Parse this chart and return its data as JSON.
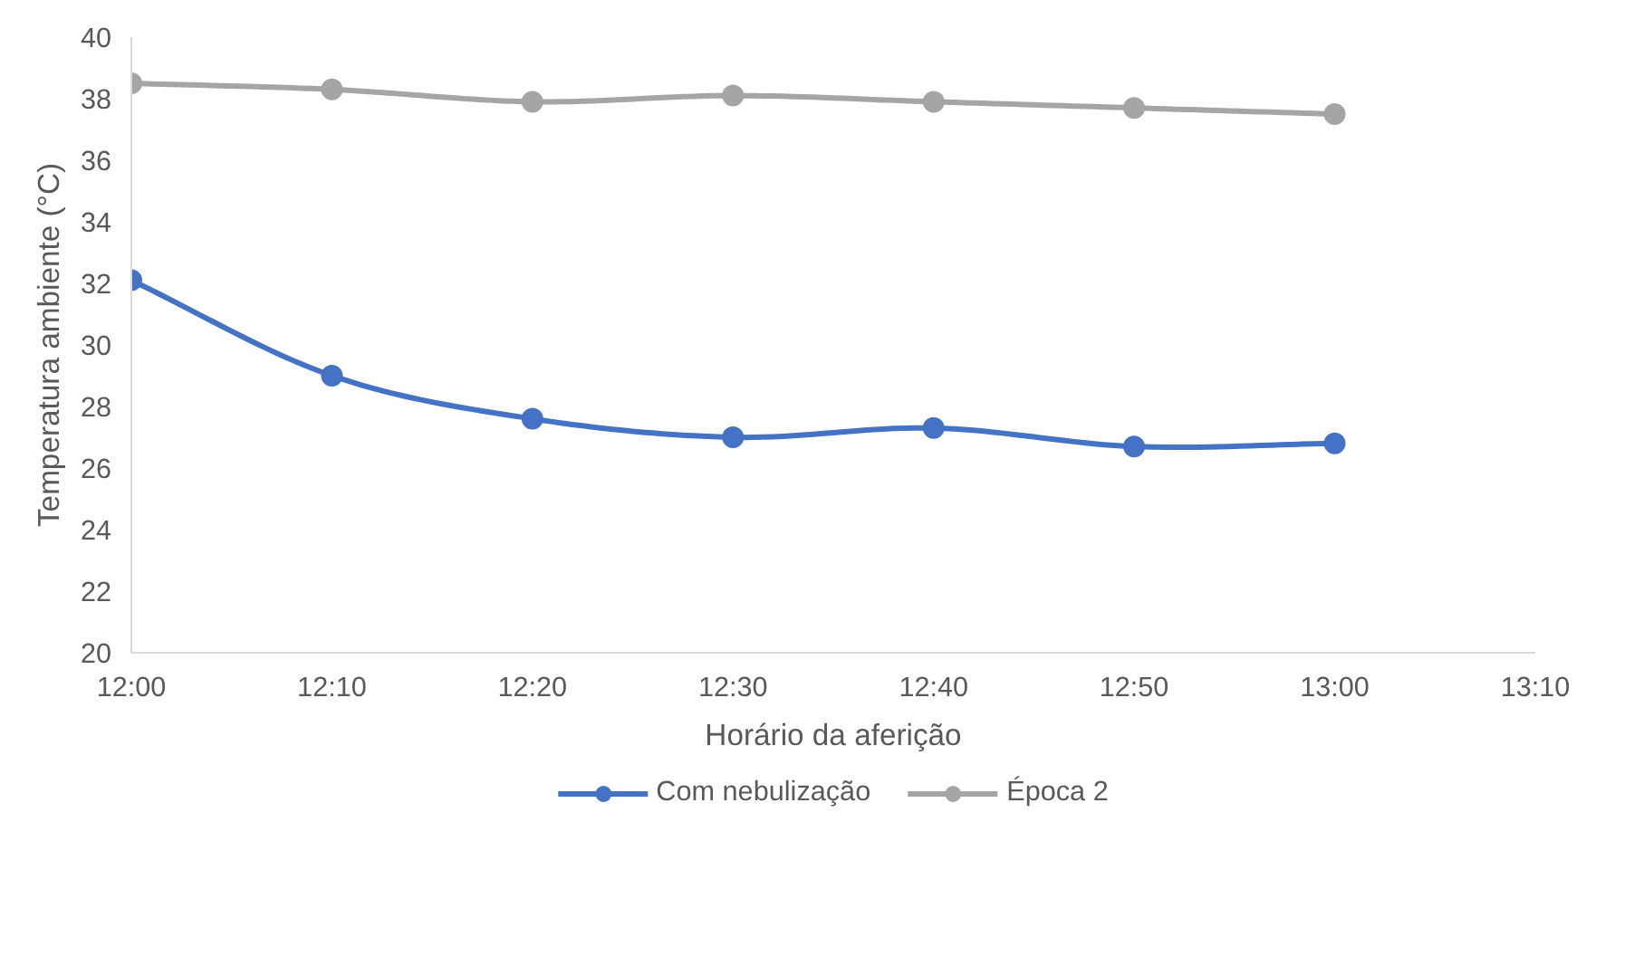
{
  "chart_data": {
    "type": "line",
    "xlabel": "Horário da aferição",
    "ylabel": "Temperatura ambiente (°C)",
    "x": [
      12,
      12.1667,
      12.3333,
      12.5,
      12.6667,
      12.8333,
      13
    ],
    "xlim": [
      12,
      13.1667
    ],
    "xticks": [
      {
        "value": 12,
        "label": "12:00"
      },
      {
        "value": 12.1667,
        "label": "12:10"
      },
      {
        "value": 12.3333,
        "label": "12:20"
      },
      {
        "value": 12.5,
        "label": "12:30"
      },
      {
        "value": 12.6667,
        "label": "12:40"
      },
      {
        "value": 12.8333,
        "label": "12:50"
      },
      {
        "value": 13,
        "label": "13:00"
      },
      {
        "value": 13.1667,
        "label": "13:10"
      }
    ],
    "ylim": [
      20,
      40
    ],
    "yticks": [
      20,
      22,
      24,
      26,
      28,
      30,
      32,
      34,
      36,
      38,
      40
    ],
    "series": [
      {
        "name": "Com nebulização",
        "color": "#4472c4",
        "values": [
          32.1,
          29.0,
          27.6,
          27.0,
          27.3,
          26.7,
          26.8
        ]
      },
      {
        "name": "Época 2",
        "color": "#a5a5a5",
        "values": [
          38.5,
          38.3,
          37.9,
          38.1,
          37.9,
          37.7,
          37.5
        ]
      }
    ],
    "marker": "circle",
    "grid": false,
    "legend": "bottom"
  }
}
